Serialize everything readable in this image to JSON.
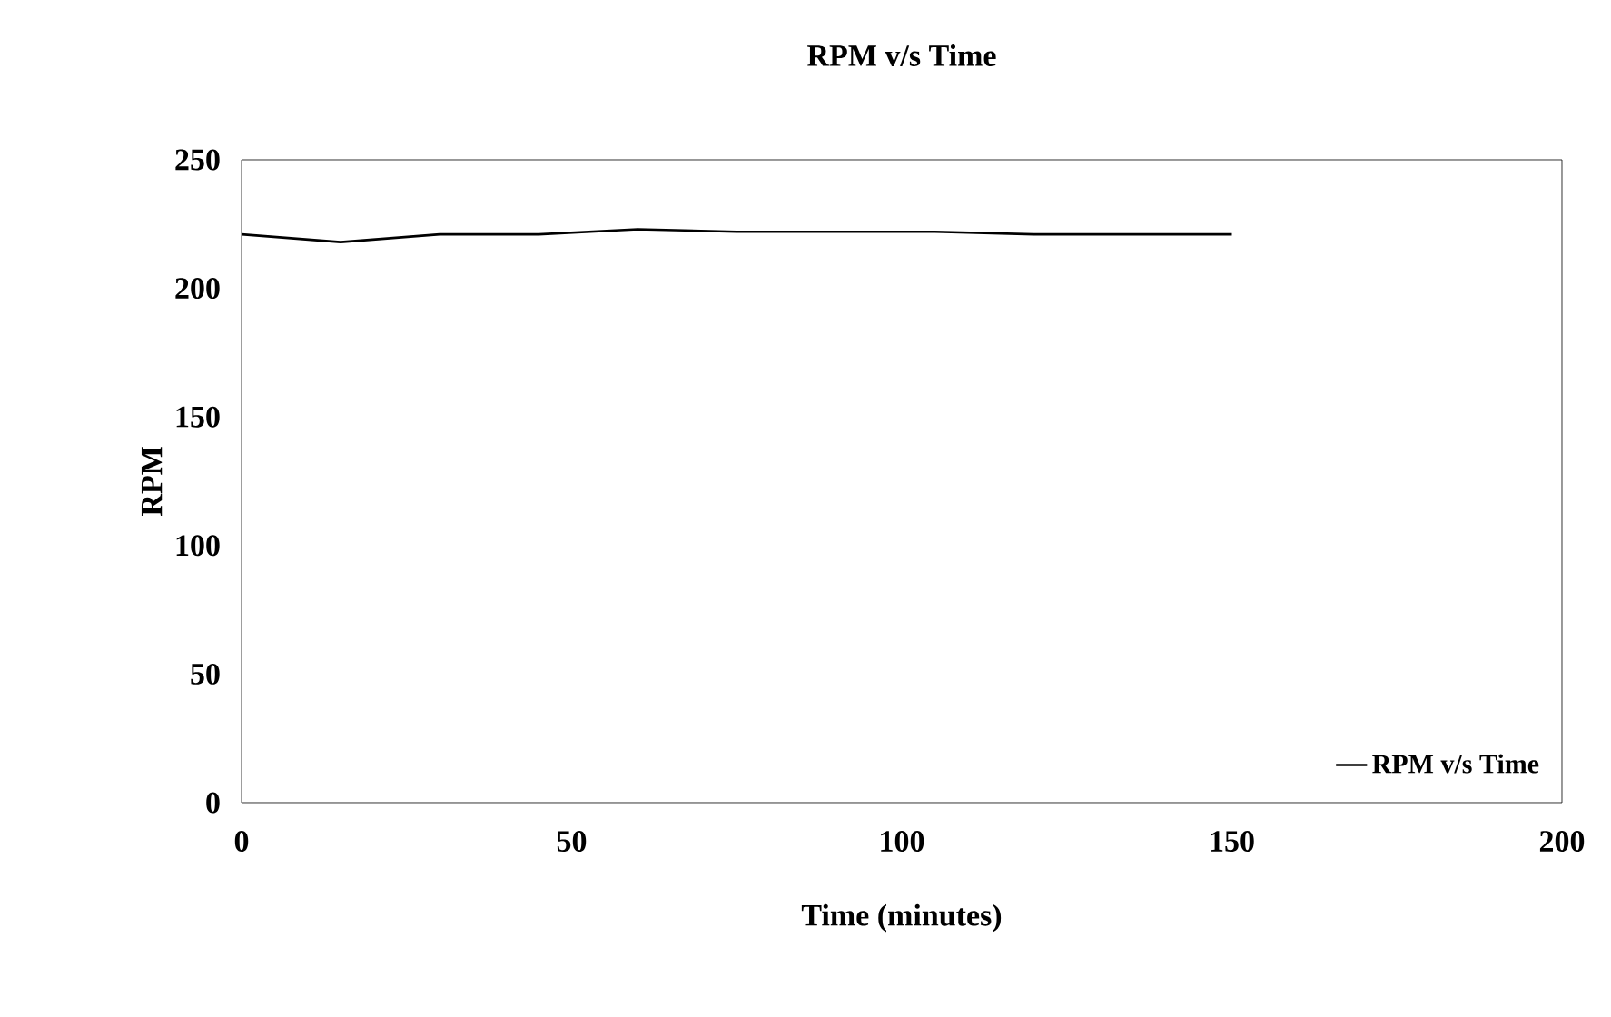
{
  "chart_data": {
    "type": "line",
    "title": "RPM v/s Time",
    "xlabel": "Time (minutes)",
    "ylabel": "RPM",
    "xlim": [
      0,
      200
    ],
    "xticks": [
      0,
      50,
      100,
      150,
      200
    ],
    "ylim": [
      0,
      250
    ],
    "yticks": [
      0,
      50,
      100,
      150,
      200,
      250
    ],
    "grid": false,
    "legend": "bottom right",
    "marker": "none",
    "line_style": "solid",
    "series": [
      {
        "name": "RPM v/s Time",
        "color": "#000000",
        "x": [
          0,
          15,
          30,
          45,
          60,
          75,
          90,
          105,
          120,
          135,
          150
        ],
        "values": [
          221,
          218,
          221,
          221,
          223,
          222,
          222,
          222,
          221,
          221,
          221
        ]
      }
    ]
  }
}
